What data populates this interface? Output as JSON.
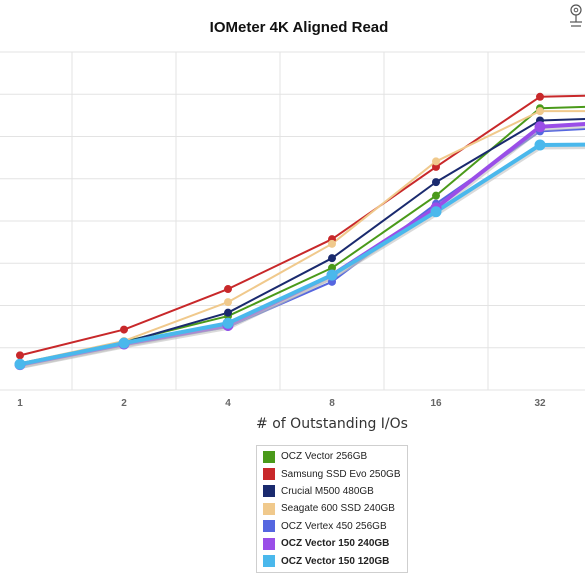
{
  "chart_data": {
    "type": "line",
    "title": "IOMeter 4K Aligned Read",
    "xlabel": "# of Outstanding I/Os",
    "ylabel": "",
    "x": [
      "1",
      "2",
      "4",
      "8",
      "16",
      "32",
      "64"
    ],
    "visible_x_ticks": [
      "1",
      "2",
      "4",
      "8",
      "16",
      "32"
    ],
    "y_axis_labels_visible": false,
    "grid": true,
    "legend_position": "bottom",
    "series": [
      {
        "name": "OCZ Vector 256GB",
        "color": "#4a9a1a",
        "bold": false,
        "values": [
          6.3,
          11.4,
          17.5,
          28.9,
          46.0,
          66.7,
          67.4
        ]
      },
      {
        "name": "Samsung SSD Evo 250GB",
        "color": "#c8282a",
        "bold": false,
        "values": [
          8.2,
          14.3,
          23.9,
          35.7,
          52.8,
          69.4,
          70.0
        ]
      },
      {
        "name": "Crucial M500 480GB",
        "color": "#1a2a6e",
        "bold": false,
        "values": [
          6.3,
          11.2,
          18.3,
          31.2,
          49.2,
          63.8,
          64.6
        ]
      },
      {
        "name": "Seagate 600 SSD 240GB",
        "color": "#f0c98c",
        "bold": false,
        "values": [
          6.3,
          11.6,
          20.8,
          34.6,
          54.1,
          66.0,
          66.0
        ]
      },
      {
        "name": "OCZ Vertex 450 256GB",
        "color": "#5566e0",
        "bold": false,
        "values": [
          5.7,
          10.6,
          14.9,
          25.6,
          44.1,
          61.2,
          62.5
        ]
      },
      {
        "name": "OCZ Vector 150 240GB",
        "color": "#9a4ee8",
        "bold": true,
        "values": [
          6.0,
          10.9,
          15.3,
          27.2,
          43.1,
          62.3,
          63.8
        ]
      },
      {
        "name": "OCZ Vector 150 120GB",
        "color": "#4ab8ec",
        "bold": true,
        "values": [
          6.1,
          11.1,
          15.8,
          27.2,
          42.2,
          58.0,
          58.2
        ]
      }
    ]
  }
}
